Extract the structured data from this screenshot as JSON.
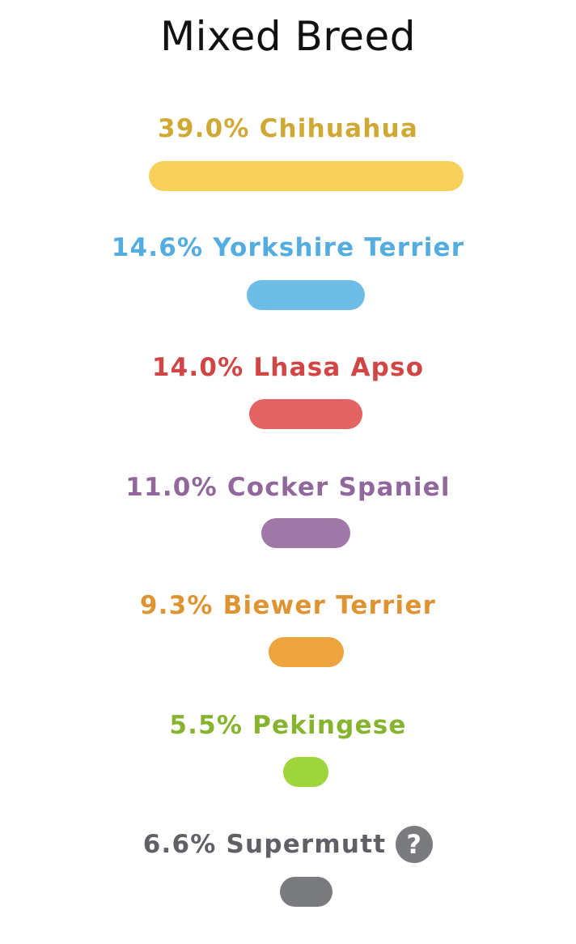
{
  "title": "Mixed Breed",
  "breeds": [
    {
      "percent": 39.0,
      "label": "39.0% Chihuahua",
      "color": "#f7d05a",
      "text_color": "#d0a935"
    },
    {
      "percent": 14.6,
      "label": "14.6% Yorkshire Terrier",
      "color": "#6ebde6",
      "text_color": "#53ade0"
    },
    {
      "percent": 14.0,
      "label": "14.0% Lhasa Apso",
      "color": "#e46463",
      "text_color": "#d24545"
    },
    {
      "percent": 11.0,
      "label": "11.0% Cocker Spaniel",
      "color": "#a078a8",
      "text_color": "#91679c"
    },
    {
      "percent": 9.3,
      "label": "9.3% Biewer Terrier",
      "color": "#eda43e",
      "text_color": "#df9433"
    },
    {
      "percent": 5.5,
      "label": "5.5% Pekingese",
      "color": "#9ed53d",
      "text_color": "#86b42f"
    },
    {
      "percent": 6.6,
      "label": "6.6% Supermutt",
      "color": "#7a7b7e",
      "text_color": "#606166",
      "help_icon": "?"
    }
  ],
  "icons": {
    "help": "question-circle-icon"
  }
}
